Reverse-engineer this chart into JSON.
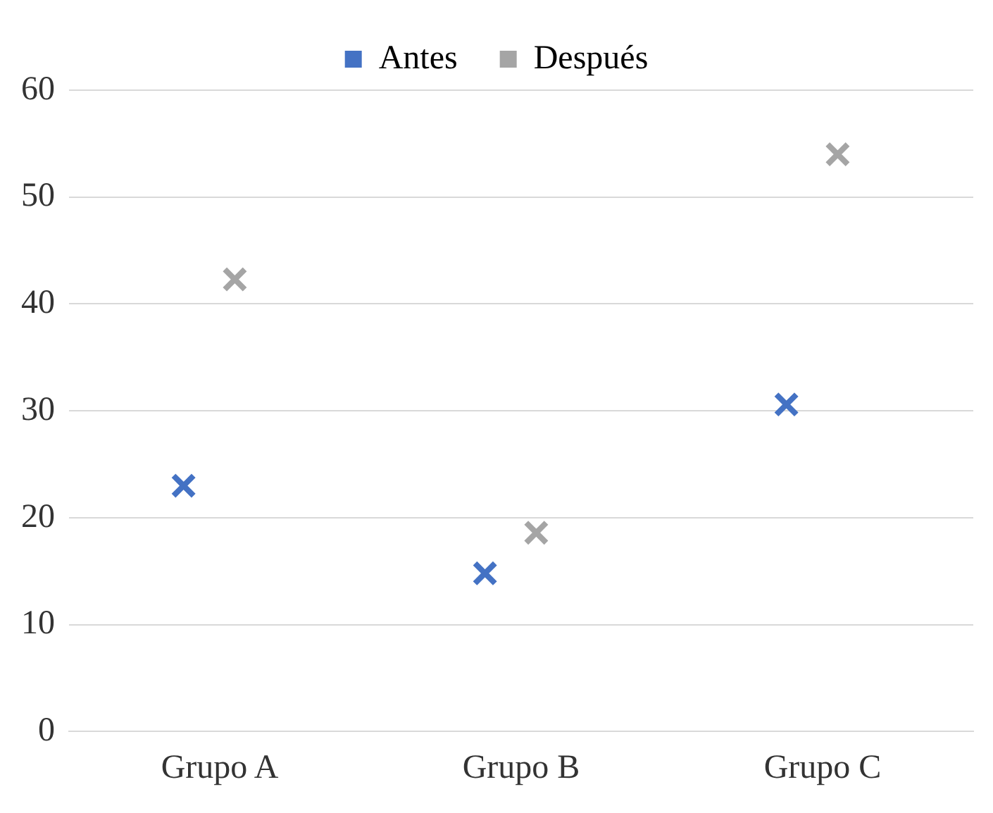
{
  "chart_data": {
    "type": "scatter",
    "categories": [
      "Grupo A",
      "Grupo B",
      "Grupo C"
    ],
    "series": [
      {
        "name": "Antes",
        "color": "#4472c4",
        "x": [
          "Grupo A",
          "Grupo B",
          "Grupo C"
        ],
        "values": [
          23,
          14.8,
          30.6
        ]
      },
      {
        "name": "Después",
        "color": "#a5a5a5",
        "x": [
          "Grupo A",
          "Grupo B",
          "Grupo C"
        ],
        "values": [
          42.3,
          18.6,
          54
        ]
      }
    ],
    "ylim": [
      0,
      60
    ],
    "yticks": [
      0,
      10,
      20,
      30,
      40,
      50,
      60
    ],
    "grid": "y",
    "legend": "top",
    "marker": "cross"
  }
}
